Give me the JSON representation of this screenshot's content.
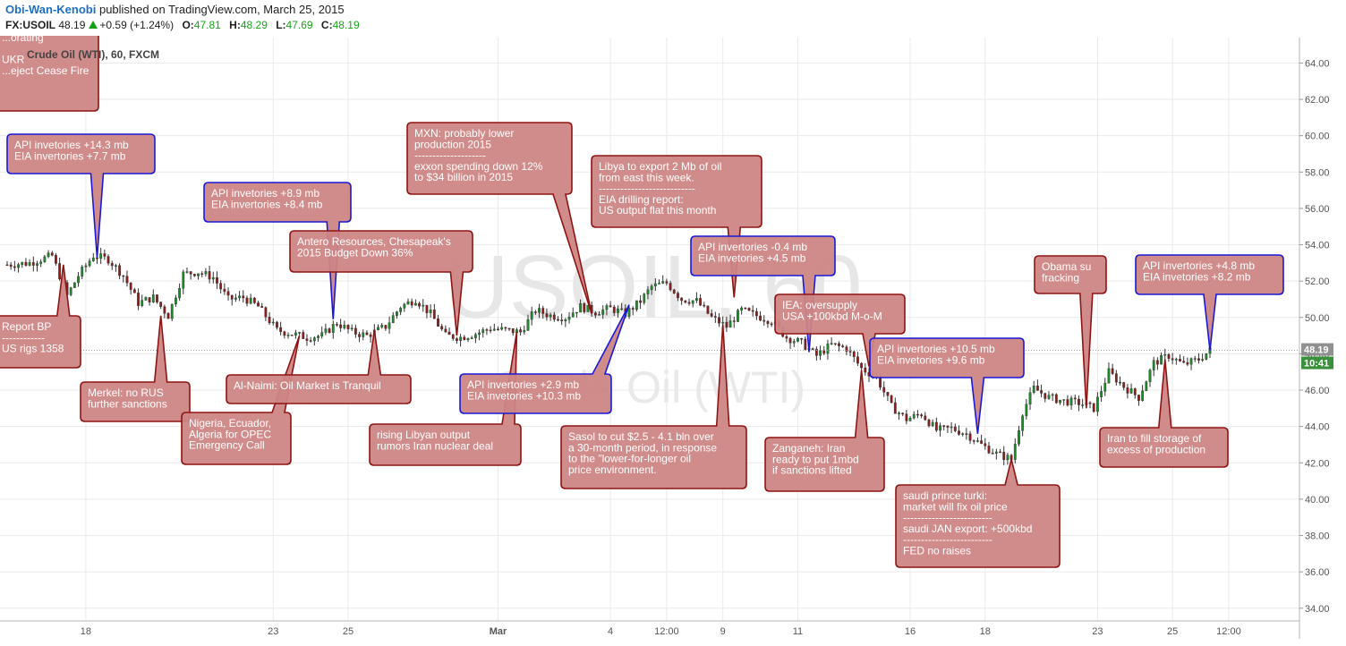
{
  "header": {
    "author": "Obi-Wan-Kenobi",
    "published": "published on TradingView.com, March 25, 2015",
    "symbol": "FX:USOIL",
    "last": "48.19",
    "change": "+0.59 (+1.24%)",
    "open_label": "O:",
    "open": "47.81",
    "high_label": "H:",
    "high": "48.29",
    "low_label": "L:",
    "low": "47.69",
    "close_label": "C:",
    "close": "48.19"
  },
  "chart_data": {
    "type": "candlestick",
    "title": "Crude Oil (WTI), 60, FXCM",
    "watermark_symbol": "USOIL, 60",
    "watermark_name": "Crude Oil (WTI)",
    "price_range": [
      33.3,
      65.4
    ],
    "y_ticks": [
      34,
      36,
      38,
      40,
      42,
      44,
      46,
      48,
      50,
      52,
      54,
      56,
      58,
      60,
      62,
      64
    ],
    "y_tick_labels": [
      "34.00",
      "36.00",
      "38.00",
      "40.00",
      "42.00",
      "44.00",
      "46.00",
      "48.00",
      "50.00",
      "52.00",
      "54.00",
      "56.00",
      "58.00",
      "60.00",
      "62.00",
      "64.00"
    ],
    "x_labels": [
      {
        "t": 18,
        "text": "18"
      },
      {
        "t": 23,
        "text": "23"
      },
      {
        "t": 25,
        "text": "25"
      },
      {
        "t": 29,
        "text": "Mar"
      },
      {
        "t": 32,
        "text": "4"
      },
      {
        "t": 33.5,
        "text": "12:00"
      },
      {
        "t": 35,
        "text": "9"
      },
      {
        "t": 37,
        "text": "11"
      },
      {
        "t": 40,
        "text": "16"
      },
      {
        "t": 42,
        "text": "18"
      },
      {
        "t": 45,
        "text": "23"
      },
      {
        "t": 47,
        "text": "25"
      },
      {
        "t": 48.5,
        "text": "12:00"
      }
    ],
    "price_path": [
      [
        15.9,
        52.9
      ],
      [
        16.5,
        53.0
      ],
      [
        17.1,
        53.4
      ],
      [
        17.5,
        51.2
      ],
      [
        17.8,
        52.3
      ],
      [
        18.2,
        53.4
      ],
      [
        18.6,
        53.2
      ],
      [
        19.0,
        52.3
      ],
      [
        19.4,
        50.8
      ],
      [
        19.8,
        51.1
      ],
      [
        20.2,
        50.1
      ],
      [
        20.6,
        52.4
      ],
      [
        21.0,
        52.5
      ],
      [
        21.4,
        52.2
      ],
      [
        21.8,
        51.0
      ],
      [
        22.2,
        51.1
      ],
      [
        22.6,
        50.6
      ],
      [
        23.1,
        49.3
      ],
      [
        23.5,
        49.1
      ],
      [
        23.9,
        48.9
      ],
      [
        24.3,
        49.0
      ],
      [
        24.7,
        49.7
      ],
      [
        25.1,
        49.2
      ],
      [
        25.5,
        49.0
      ],
      [
        26.0,
        49.5
      ],
      [
        26.4,
        50.6
      ],
      [
        26.8,
        51.0
      ],
      [
        27.2,
        50.2
      ],
      [
        27.6,
        49.0
      ],
      [
        28.0,
        48.9
      ],
      [
        28.4,
        49.1
      ],
      [
        28.8,
        49.4
      ],
      [
        29.2,
        49.3
      ],
      [
        29.6,
        49.2
      ],
      [
        30.0,
        50.4
      ],
      [
        30.4,
        50.1
      ],
      [
        30.8,
        50.0
      ],
      [
        31.2,
        50.6
      ],
      [
        31.6,
        50.3
      ],
      [
        32.0,
        50.5
      ],
      [
        32.4,
        50.2
      ],
      [
        32.8,
        50.9
      ],
      [
        33.1,
        51.7
      ],
      [
        33.5,
        51.9
      ],
      [
        33.9,
        51.0
      ],
      [
        34.3,
        50.9
      ],
      [
        34.7,
        50.0
      ],
      [
        35.1,
        49.5
      ],
      [
        35.5,
        50.4
      ],
      [
        35.9,
        50.1
      ],
      [
        36.3,
        49.8
      ],
      [
        36.7,
        48.9
      ],
      [
        37.1,
        48.6
      ],
      [
        37.5,
        47.9
      ],
      [
        37.9,
        48.5
      ],
      [
        38.3,
        48.3
      ],
      [
        38.7,
        47.2
      ],
      [
        39.1,
        46.7
      ],
      [
        39.5,
        45.1
      ],
      [
        39.9,
        44.4
      ],
      [
        40.3,
        44.7
      ],
      [
        40.7,
        43.8
      ],
      [
        41.1,
        43.9
      ],
      [
        41.5,
        43.6
      ],
      [
        41.9,
        43.0
      ],
      [
        42.3,
        42.5
      ],
      [
        42.7,
        42.2
      ],
      [
        43.0,
        44.8
      ],
      [
        43.3,
        46.1
      ],
      [
        43.7,
        45.6
      ],
      [
        44.1,
        45.4
      ],
      [
        44.5,
        45.3
      ],
      [
        44.9,
        45.0
      ],
      [
        45.3,
        47.0
      ],
      [
        45.7,
        46.2
      ],
      [
        46.1,
        45.6
      ],
      [
        46.5,
        47.5
      ],
      [
        46.9,
        47.9
      ],
      [
        47.3,
        47.4
      ],
      [
        47.7,
        47.7
      ],
      [
        48.0,
        48.19
      ]
    ],
    "current_price": "48.19",
    "countdown": "10:41",
    "annotations": [
      {
        "text": [
          "...orating",
          "",
          "UKR",
          "...eject Cease Fire"
        ],
        "t": null,
        "price": null,
        "color": "red"
      },
      {
        "text": [
          "API invetories +14.3 mb",
          "EIA invertories +7.7 mb"
        ],
        "t": 18.3,
        "price": 53.3,
        "color": "blue"
      },
      {
        "text": [
          "Report BP",
          "------------",
          "US rigs 1358"
        ],
        "t": 17.4,
        "price": 52.9,
        "color": "red"
      },
      {
        "text": [
          "Merkel: no RUS",
          "further sanctions"
        ],
        "t": 20.0,
        "price": 50.1,
        "color": "red"
      },
      {
        "text": [
          "API invetories +8.9 mb",
          "EIA invertories +8.4 mb"
        ],
        "t": 24.6,
        "price": 49.9,
        "color": "blue"
      },
      {
        "text": [
          "Nigeria, Ecuador,",
          "Algeria for OPEC",
          "Emergency Call"
        ],
        "t": 23.7,
        "price": 49.0,
        "color": "red"
      },
      {
        "text": [
          "Al-Naimi: Oil Market is Tranquil"
        ],
        "t": 25.7,
        "price": 49.3,
        "color": "red"
      },
      {
        "text": [
          "Antero Resources, Chesapeak's",
          "2015 Budget Down 36%"
        ],
        "t": 27.9,
        "price": 49.0,
        "color": "red"
      },
      {
        "text": [
          "rising Libyan output",
          "rumors Iran nuclear deal"
        ],
        "t": 29.5,
        "price": 49.2,
        "color": "red"
      },
      {
        "text": [
          "MXN: probably lower",
          "production 2015",
          "--------------------",
          "exxon spending down 12%",
          "to $34 billion in 2015"
        ],
        "t": 31.5,
        "price": 50.2,
        "color": "red"
      },
      {
        "text": [
          "API invertories +2.9 mb",
          "EIA invetories +10.3 mb"
        ],
        "t": 32.5,
        "price": 50.7,
        "color": "blue"
      },
      {
        "text": [
          "Libya to export 2 Mb of oil",
          "from east this week.",
          "---------------------------",
          "EIA drilling report:",
          "US output flat this month"
        ],
        "t": 35.3,
        "price": 51.1,
        "color": "red"
      },
      {
        "text": [
          "Sasol to cut $2.5 - 4.1 bln over",
          "a 30-month period, in response",
          "to the \"lower-for-longer oil",
          "price environment."
        ],
        "t": 35.0,
        "price": 49.6,
        "color": "red"
      },
      {
        "text": [
          "API invertories -0.4 mb",
          "EIA invetories +4.5 mb"
        ],
        "t": 37.3,
        "price": 48.1,
        "color": "blue"
      },
      {
        "text": [
          "IEA: oversupply",
          "USA +100kbd M-o-M"
        ],
        "t": 38.9,
        "price": 47.3,
        "color": "red"
      },
      {
        "text": [
          "Zanganeh: Iran",
          "ready to put 1mbd",
          "if sanctions lifted"
        ],
        "t": 38.7,
        "price": 47.1,
        "color": "red"
      },
      {
        "text": [
          "API invertories +10.5 mb",
          "EIA invetories +9.6 mb"
        ],
        "t": 41.8,
        "price": 43.6,
        "color": "blue"
      },
      {
        "text": [
          "saudi prince turki:",
          "market will fix oil price",
          "-------------------------",
          "saudi JAN export: +500kbd",
          "-------------------------",
          "FED no raises"
        ],
        "t": 42.7,
        "price": 42.2,
        "color": "red"
      },
      {
        "text": [
          "Obama su",
          "fracking"
        ],
        "t": 44.7,
        "price": 45.0,
        "color": "red"
      },
      {
        "text": [
          "Iran to fill storage of",
          "excess of production"
        ],
        "t": 46.8,
        "price": 47.7,
        "color": "red"
      },
      {
        "text": [
          "API invertories +4.8 mb",
          "EIA invetories +8.2 mb"
        ],
        "t": 48.0,
        "price": 48.2,
        "color": "blue"
      }
    ]
  },
  "colors": {
    "callout_fill": "#cd8585",
    "callout_red_border": "#8f1414",
    "callout_blue_border": "#1a1ad6",
    "candle_up": "#1f8a2a",
    "candle_down": "#8b1d1d",
    "grid": "#eaeaea",
    "axis_text": "#555555",
    "price_badge": "#909090",
    "countdown_badge": "#3a8f3a",
    "watermark": "#e7e7e7"
  }
}
